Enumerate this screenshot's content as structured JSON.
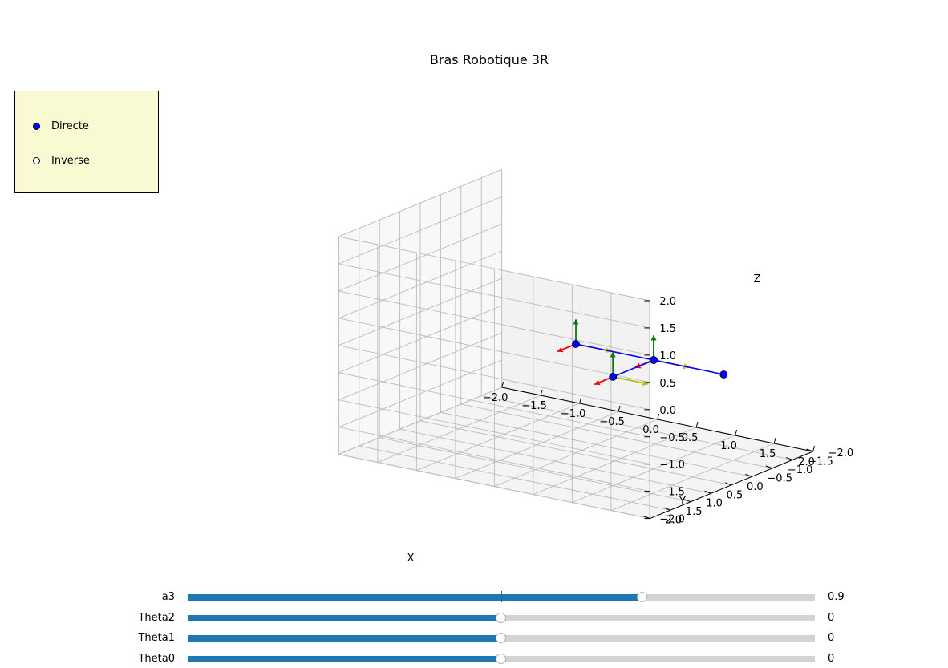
{
  "chart_data": {
    "type": "line",
    "projection": "3d",
    "title": "Bras Robotique 3R",
    "xlabel": "X",
    "ylabel": "Y",
    "zlabel": "Z",
    "xlim": [
      -2.0,
      2.0
    ],
    "ylim": [
      -2.0,
      2.0
    ],
    "zlim": [
      -2.0,
      2.0
    ],
    "xticks": [
      "−2.0",
      "−1.5",
      "−1.0",
      "−0.5",
      "0.0",
      "0.5",
      "1.0",
      "1.5",
      "2.0"
    ],
    "yticks": [
      "−2.0",
      "−1.5",
      "−1.0",
      "−0.5",
      "0.0",
      "0.5",
      "1.0",
      "1.5",
      "2.0"
    ],
    "zticks": [
      "−2.0",
      "−1.5",
      "−1.0",
      "−0.5",
      "0.0",
      "0.5",
      "1.0",
      "1.5",
      "2.0"
    ],
    "grid": true,
    "series": [
      {
        "color": "#0000ff",
        "points": [
          {
            "x": 0.0,
            "y": 0.0,
            "z": 0.0
          },
          {
            "x": 1.0,
            "y": 0.0,
            "z": 0.0
          },
          {
            "x": 1.0,
            "y": 1.0,
            "z": 0.0
          },
          {
            "x": 1.0,
            "y": 0.0,
            "z": 0.0
          },
          {
            "x": 1.9,
            "y": 0.0,
            "z": 0.0
          }
        ]
      }
    ],
    "frame_origins": [
      {
        "x": 0.0,
        "y": 0.0,
        "z": 0.0
      },
      {
        "x": 1.0,
        "y": 0.0,
        "z": 0.0
      },
      {
        "x": 1.0,
        "y": 1.0,
        "z": 0.0
      },
      {
        "x": 1.0,
        "y": 0.0,
        "z": 0.0
      }
    ],
    "frame_axis_length": 0.45,
    "frame_colors": {
      "x": "#bfbf00",
      "y": "#ff0000",
      "z": "#008000"
    }
  },
  "mode_selector": {
    "selected": "Directe",
    "options": [
      "Directe",
      "Inverse"
    ],
    "background": "#fafad2",
    "selected_color": "#0000ff"
  },
  "sliders": [
    {
      "label": "a3",
      "value": 0.9,
      "value_text": "0.9",
      "min": -2.0,
      "max": 2.0,
      "init": 0.0
    },
    {
      "label": "Theta2",
      "value": 0,
      "value_text": "0",
      "min": -180,
      "max": 180,
      "init": 0
    },
    {
      "label": "Theta1",
      "value": 0,
      "value_text": "0",
      "min": -180,
      "max": 180,
      "init": 0
    },
    {
      "label": "Theta0",
      "value": 0,
      "value_text": "0",
      "min": -180,
      "max": 180,
      "init": 0
    }
  ],
  "colors": {
    "slider_fill": "#1f77b4",
    "slider_track": "#d3d3d3",
    "slider_init_marker": "#d62728"
  }
}
